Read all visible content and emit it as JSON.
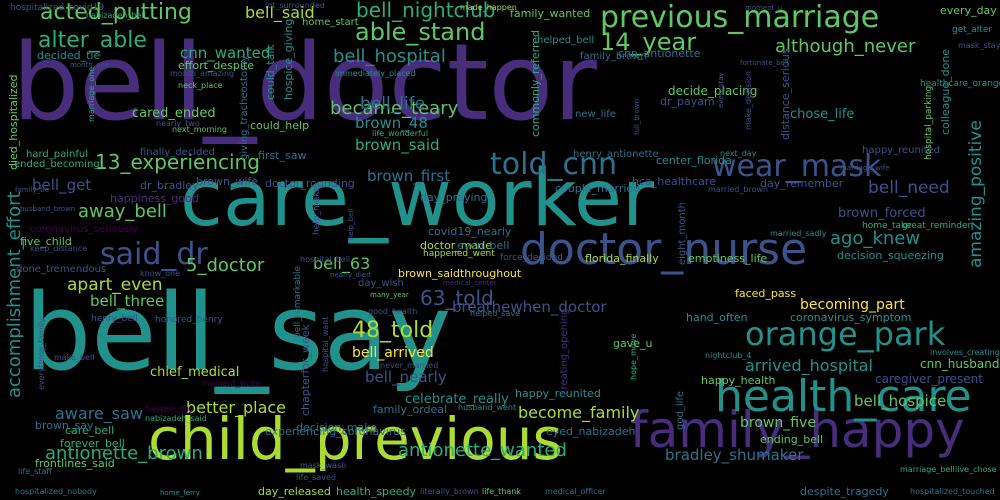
{
  "words": {
    "bell_doctor": "bell_doctor",
    "bell_say": "bell_say",
    "care_worker": "care_worker",
    "child_previous": "child_previous",
    "doctor_nurse": "doctor_nurse",
    "family_happy": "family_happy",
    "health_care": "health_care",
    "previous_marriage": "previous_marriage",
    "orange_park": "orange_park",
    "told_cnn": "told_cnn",
    "wear_mask": "wear_mask",
    "said_dr": "said_dr",
    "able_stand": "able_stand",
    "acted_putting": "acted_putting",
    "bell_said": "bell_said",
    "bell_nightclub": "bell_nightclub",
    "alter_able": "alter_able",
    "cnn_wanted": "cnn_wanted",
    "bell_hospital": "bell_hospital",
    "14_year": "14_year",
    "although_never": "although_never",
    "became_teary": "became_teary",
    "bell_life": "bell_life",
    "brown_48": "brown_48",
    "brown_said": "brown_said",
    "13_experiencing": "13_experiencing",
    "bell_get": "bell_get",
    "away_bell": "away_bell",
    "brown_first": "brown_first",
    "5_doctor": "5_doctor",
    "bell_63": "bell_63",
    "apart_even": "apart_even",
    "bell_three": "bell_three",
    "63_told": "63_told",
    "48_told": "48_told",
    "bell_arrived": "bell_arrived",
    "bell_nearly": "bell_nearly",
    "breathewhen_doctor": "breathewhen_doctor",
    "becoming_part": "becoming_part",
    "ago_knew": "ago_knew",
    "bell_need": "bell_need",
    "brown_forced": "brown_forced",
    "arrived_hospital": "arrived_hospital",
    "cnn_husband": "cnn_husband",
    "caregiver_present": "caregiver_present",
    "aware_saw": "aware_saw",
    "better_place": "better_place",
    "chief_medical": "chief_medical",
    "celebrate_really": "celebrate_really",
    "become_family": "become_family",
    "brown_five": "brown_five",
    "bell_hospice": "bell_hospice",
    "bradley_shumaker": "bradley_shumaker",
    "antionette_brown": "antionette_brown",
    "antionette_wanted": "antionette_wanted",
    "accomplishment_effort": "accomplishment_effort",
    "amazing_positive": "amazing_positive",
    "chose_life": "chose_life",
    "cared_ended": "cared_ended",
    "could_help": "could_help",
    "decide_placing": "decide_placing",
    "dr_payam": "dr_payam",
    "chapterfor_week": "chapterfor_week",
    "colleague_done": "colleague_done",
    "cnn_antionette": "cnn_antionette",
    "first_saw": "first_saw",
    "dr_bradley": "dr_bradley",
    "brown_wife": "brown_wife",
    "doctor_rounding": "doctor_rounding",
    "couple_married": "couple_married",
    "hca_healthcare": "hca_healthcare",
    "center_florida": "center_florida",
    "day_remember": "day_remember",
    "emptiness_life": "emptiness_life",
    "florida_finally": "florida_finally",
    "brown_saidthroughout": "brown_saidthroughout",
    "faced_pass": "faced_pass",
    "hand_often": "hand_often",
    "coronavirus_symptom": "coronavirus_symptom",
    "decision_squeezing": "decision_squeezing",
    "doctor_made": "doctor_made",
    "even_bell": "even_bell",
    "covid19_nearly": "covid19_nearly",
    "day_praying": "day_praying",
    "happiness_good": "happiness_good",
    "five_child": "five_child",
    "care_bell": "care_bell",
    "brown_say": "brown_say",
    "forever_bell": "forever_bell",
    "frontlines_said": "frontlines_said",
    "day_released": "day_released",
    "health_speedy": "health_speedy",
    "eyed_nabizadeh": "eyed_nabizadeh",
    "despite_tragedy": "despite_tragedy",
    "ending_bell": "ending_bell",
    "happy_health": "happy_health",
    "god_life": "god_life",
    "family_ordeal": "family_ordeal",
    "decision_make": "decision_make",
    "experiencing_coronavirus": "experiencing_coronavirus",
    "gave_u": "gave_u",
    "hope_move": "hope_move",
    "commonly_referred": "commonly_referred",
    "distance_serious": "distance_serious",
    "died_hospitalized": "died_hospitalized",
    "hospitalized_covid19": "hospitalized_covid19",
    "nabizadeh_bell": "nabizadeh_bell",
    "decided_tie": "decided_tie",
    "effort_despite": "effort_despite",
    "giving_tracheostomy": "giving_tracheostomy",
    "could_talk": "could_talk",
    "hospice_giving": "hospice_giving",
    "home_start": "home_start",
    "made_happen": "made_happen",
    "family_wanted": "family_wanted",
    "lot_surrounded": "lot_surrounded",
    "helped_bell": "helped_bell",
    "family_brown": "family_brown",
    "every_day": "every_day",
    "get_alter": "get_alter",
    "mask_stay": "mask_stay",
    "healthcare_orange": "healthcare_orange",
    "immediately_placed": "immediately_placed",
    "month_amazing": "month_amazing",
    "neck_place": "neck_place",
    "next_morning": "next_morning",
    "nearly_two": "nearly_two",
    "marriage_one": "marriage_one",
    "hard_painful": "hard_painful",
    "ended_becoming": "ended_becoming",
    "finally_decided": "finally_decided",
    "married_brown": "married_brown",
    "happy_reunited": "happy_reunited",
    "hospital_parking": "hospital_parking",
    "henry_antionette": "henry_antionette",
    "new_life": "new_life",
    "life_wonderful": "life_wonderful",
    "make_decision": "make_decision",
    "next_day": "next_day",
    "home_take": "home_take",
    "great_reminder": "great_reminder",
    "married_sadly": "married_sadly",
    "help_make": "help_make",
    "eight_month": "eight_month",
    "coronavirus_seriously": "coronavirus_seriously",
    "keep_distance": "keep_distance",
    "done_tremendous": "done_tremendous",
    "know_one": "know_one",
    "hospital_bell": "hospital_bell",
    "force_decided": "force_decided",
    "happened_went": "happened_went",
    "day_wish": "day_wish",
    "nearly_died": "nearly_died",
    "many_year": "many_year",
    "medical_center": "medical_center",
    "henry_bell": "henry_bell",
    "honored_henry": "honored_henry",
    "good_health": "good_health",
    "helped_save": "helped_save",
    "hospital_want": "hospital_want",
    "nightclub_4": "nightclub_4",
    "involves_creating": "involves_creating",
    "make_bell": "make_bell",
    "never_married": "never_married",
    "everything_family": "everything_family",
    "moment_woke": "moment_woke",
    "happen_day": "happen_day",
    "nabizadeh_said": "nabizadeh_said",
    "husband_went": "husband_went",
    "mask_wash": "mask_wash",
    "life_saved": "life_saved",
    "life_staff": "life_staff",
    "marriage_bell": "marriage_bell",
    "live_chose": "live_chose",
    "medical_officer": "medical_officer",
    "hospitalized_touched": "hospitalized_touched",
    "hospitalized_nobody": "hospitalized_nobody",
    "literally_brown": "literally_brown",
    "life_thank": "life_thank",
    "creating_opening": "creating_opening",
    "home_ferry": "home_ferry",
    "moment_u": "moment_u",
    "month_one": "month_one",
    "full_brown": "full_brown",
    "even_stay": "even_stay",
    "marriage_wife": "marriage_wife",
    "husband_brown": "husband_brown",
    "family_tie": "family_tie",
    "help_bell": "help_bell",
    "bell_remarkable": "bell_remarkable",
    "doctor_nurse_life": "doctor_nurse",
    "fortunate_bell": "fortunate_bell"
  }
}
